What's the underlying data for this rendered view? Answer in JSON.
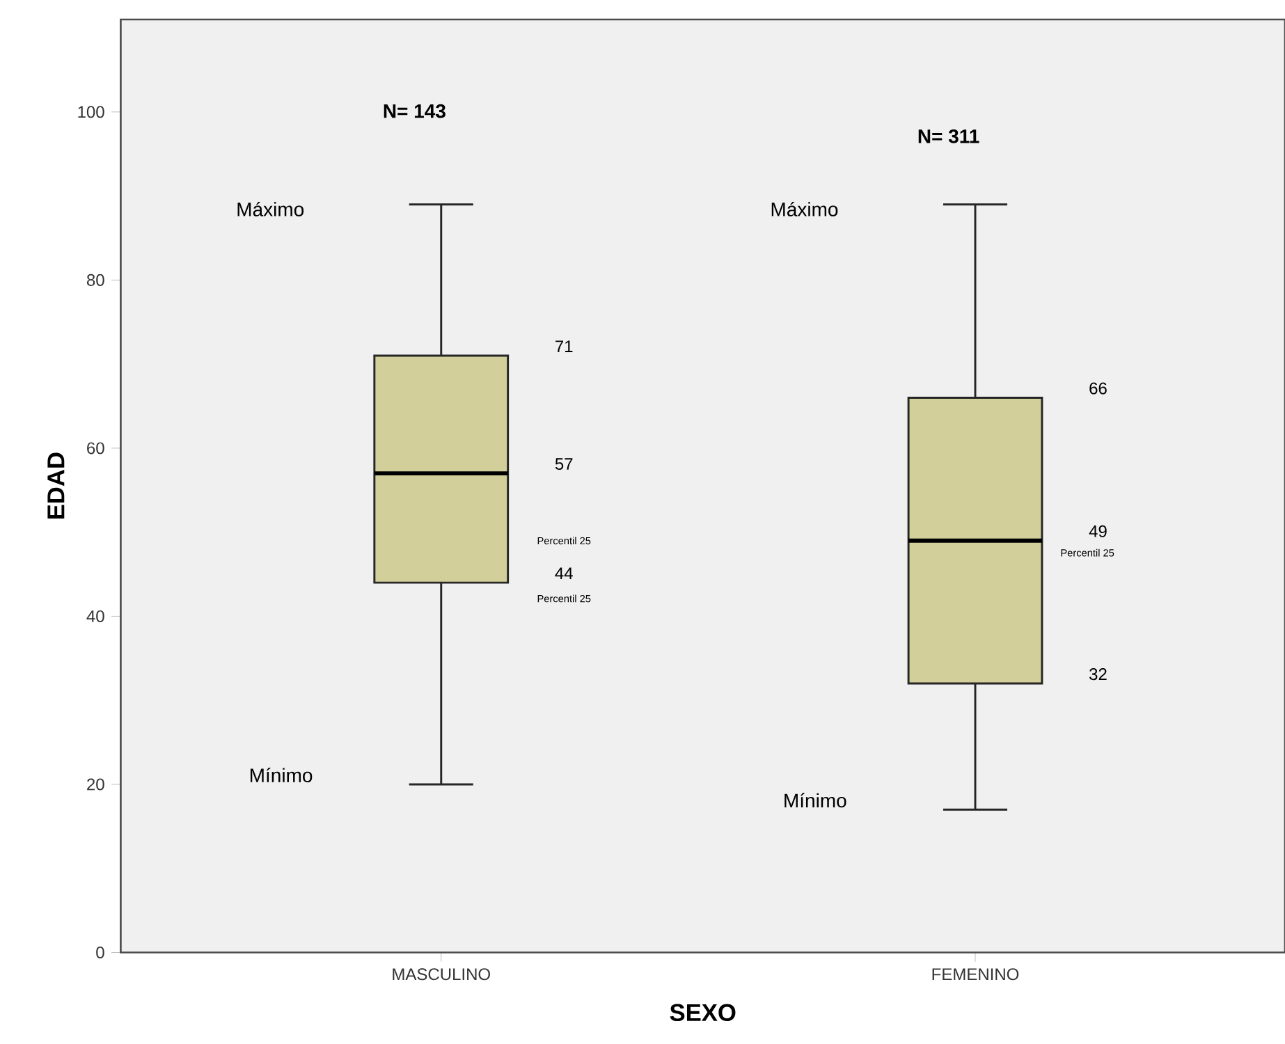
{
  "chart_data": {
    "type": "box",
    "xlabel": "SEXO",
    "ylabel": "EDAD",
    "categories": [
      "MASCULINO",
      "FEMENINO"
    ],
    "color": "#d3cf9a",
    "boxes": [
      {
        "low": 20,
        "q1": 44,
        "median": 57,
        "q3": 71,
        "high": 89
      },
      {
        "low": 17,
        "q1": 32,
        "median": 49,
        "q3": 66,
        "high": 89
      }
    ],
    "ylim": [
      0,
      111
    ],
    "yticks": [
      0,
      20,
      40,
      60,
      80,
      100
    ],
    "grid": false,
    "annotations": [
      "N= 143",
      "Máximo",
      "71",
      "57",
      "Percentil 25",
      "44",
      "Percentil 25",
      "Mínimo",
      "N= 311",
      "Máximo",
      "66",
      "49",
      "Percentil 25",
      "32",
      "Mínimo"
    ]
  }
}
